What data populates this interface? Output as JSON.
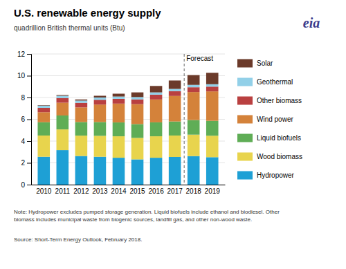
{
  "chart_data": {
    "type": "bar",
    "title": "U.S. renewable energy supply",
    "subtitle": "quadrillion British thermal units (Btu)",
    "categories": [
      "2010",
      "2011",
      "2012",
      "2013",
      "2014",
      "2015",
      "2016",
      "2017",
      "2018",
      "2019"
    ],
    "series": [
      {
        "name": "Hydropower",
        "color": "#1EA0D5",
        "values": [
          2.56,
          3.17,
          2.63,
          2.56,
          2.47,
          2.32,
          2.47,
          2.54,
          2.62,
          2.52
        ]
      },
      {
        "name": "Wood biomass",
        "color": "#E8D44D",
        "values": [
          1.95,
          1.9,
          1.87,
          1.92,
          1.97,
          1.97,
          1.97,
          1.97,
          1.97,
          1.97
        ]
      },
      {
        "name": "Liquid biofuels",
        "color": "#5FAD56",
        "values": [
          1.22,
          1.28,
          1.25,
          1.27,
          1.27,
          1.27,
          1.28,
          1.29,
          1.34,
          1.37
        ]
      },
      {
        "name": "Wind power",
        "color": "#D4823A",
        "values": [
          0.92,
          1.17,
          1.34,
          1.6,
          1.73,
          1.83,
          2.1,
          2.34,
          2.57,
          2.7
        ]
      },
      {
        "name": "Other biomass",
        "color": "#B94040",
        "values": [
          0.4,
          0.43,
          0.42,
          0.44,
          0.44,
          0.44,
          0.44,
          0.44,
          0.44,
          0.44
        ]
      },
      {
        "name": "Geothermal",
        "color": "#92D0E8",
        "values": [
          0.21,
          0.21,
          0.21,
          0.21,
          0.21,
          0.21,
          0.21,
          0.21,
          0.22,
          0.22
        ]
      },
      {
        "name": "Solar",
        "color": "#6B3A2A",
        "values": [
          0.04,
          0.07,
          0.1,
          0.16,
          0.26,
          0.43,
          0.59,
          0.77,
          0.9,
          1.05
        ]
      }
    ],
    "stacked": true,
    "ylim": [
      0,
      12
    ],
    "yticks": [
      0,
      2,
      4,
      6,
      8,
      10,
      12
    ],
    "grid": true,
    "legend": "right",
    "annotations": [
      {
        "text": "Forecast",
        "x": "2018"
      },
      {
        "text": "eia"
      }
    ],
    "note": "Note: Hydropower excludes pumped storage generation.  Liquid biofuels include ethanol and biodiesel.  Other\nbiomass includes municipal waste from biogenic sources, landfill gas, and other non-wood waste.",
    "source": "Source: Short-Term Energy Outlook, February 2018."
  }
}
